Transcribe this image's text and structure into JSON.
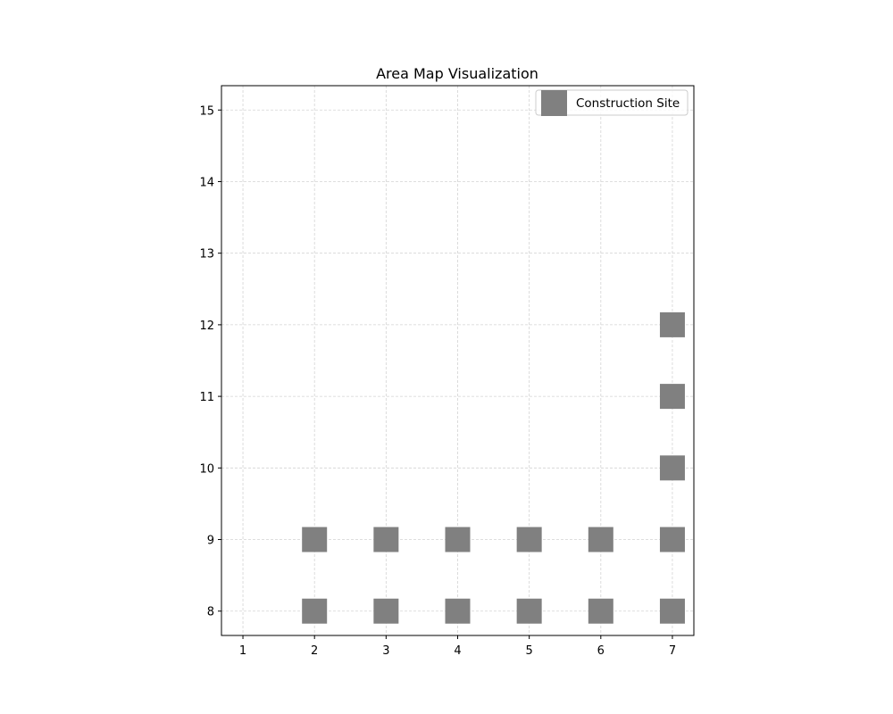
{
  "chart_data": {
    "type": "scatter",
    "title": "Area Map Visualization",
    "xlabel": "",
    "ylabel": "",
    "xlim": [
      0.7,
      7.3
    ],
    "ylim": [
      7.66,
      15.34
    ],
    "xticks": [
      1,
      2,
      3,
      4,
      5,
      6,
      7
    ],
    "yticks": [
      8,
      9,
      10,
      11,
      12,
      13,
      14,
      15
    ],
    "grid": true,
    "legend_position": "top-right",
    "series": [
      {
        "name": "Construction Site",
        "marker": "square",
        "color": "#808080",
        "points": [
          {
            "x": 2,
            "y": 8
          },
          {
            "x": 3,
            "y": 8
          },
          {
            "x": 4,
            "y": 8
          },
          {
            "x": 5,
            "y": 8
          },
          {
            "x": 6,
            "y": 8
          },
          {
            "x": 7,
            "y": 8
          },
          {
            "x": 2,
            "y": 9
          },
          {
            "x": 3,
            "y": 9
          },
          {
            "x": 4,
            "y": 9
          },
          {
            "x": 5,
            "y": 9
          },
          {
            "x": 6,
            "y": 9
          },
          {
            "x": 7,
            "y": 9
          },
          {
            "x": 7,
            "y": 10
          },
          {
            "x": 7,
            "y": 11
          },
          {
            "x": 7,
            "y": 12
          }
        ]
      }
    ]
  }
}
